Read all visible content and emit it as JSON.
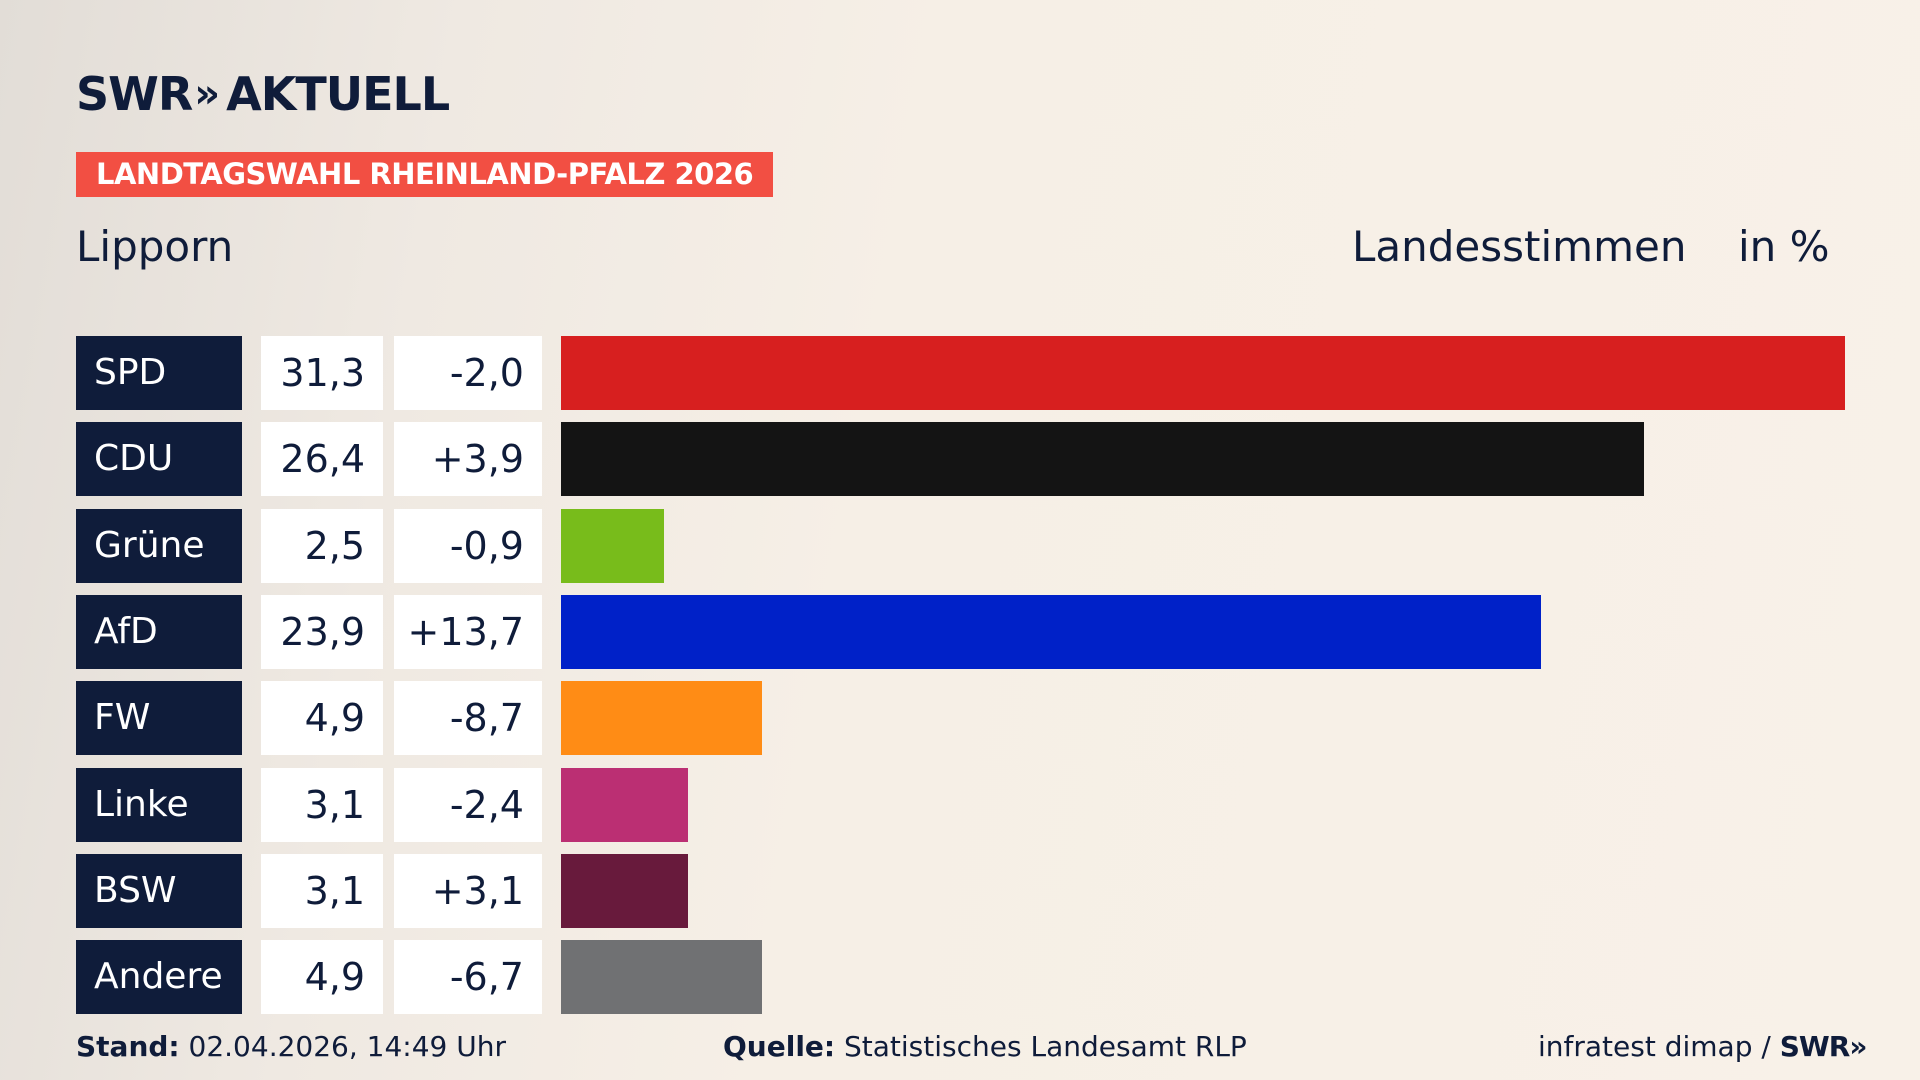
{
  "brand": {
    "name": "SWR",
    "chevrons": "»",
    "product": "AKTUELL"
  },
  "banner": "LANDTAGSWAHL RHEINLAND-PFALZ 2026",
  "region": "Lipporn",
  "measure": "Landesstimmen",
  "unit": "in %",
  "chart_data": {
    "type": "bar",
    "orientation": "horizontal",
    "categories": [
      "SPD",
      "CDU",
      "Grüne",
      "AfD",
      "FW",
      "Linke",
      "BSW",
      "Andere"
    ],
    "values": [
      31.3,
      26.4,
      2.5,
      23.9,
      4.9,
      3.1,
      3.1,
      4.9
    ],
    "value_labels": [
      "31,3",
      "26,4",
      "2,5",
      "23,9",
      "4,9",
      "3,1",
      "3,1",
      "4,9"
    ],
    "diff_labels": [
      "-2,0",
      "+3,9",
      "-0,9",
      "+13,7",
      "-8,7",
      "-2,4",
      "+3,1",
      "-6,7"
    ],
    "colors": [
      "#d71f1f",
      "#141414",
      "#78bc1b",
      "#0021c8",
      "#ff8c15",
      "#bb2f73",
      "#681a3c",
      "#707173"
    ],
    "xlim": [
      0,
      31.3
    ]
  },
  "footer": {
    "stand_label": "Stand:",
    "stand_value": "02.04.2026, 14:49 Uhr",
    "quelle_label": "Quelle:",
    "quelle_value": "Statistisches Landesamt RLP",
    "credit": "infratest dimap /",
    "credit_brand": "SWR»"
  }
}
